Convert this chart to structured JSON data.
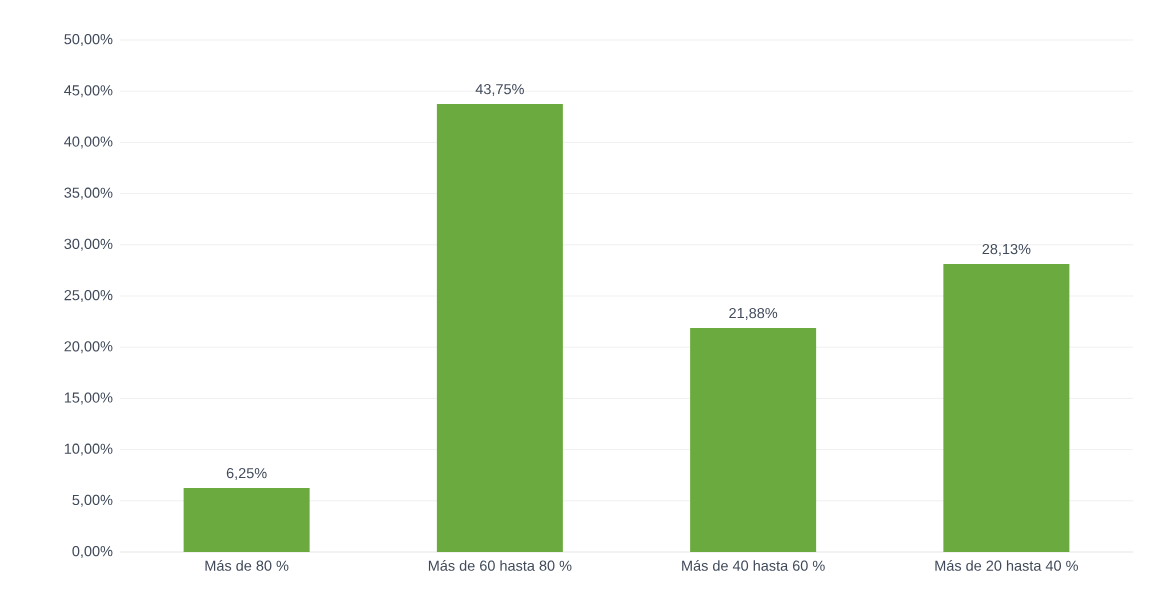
{
  "chart_data": {
    "type": "bar",
    "categories": [
      "Más de 80 %",
      "Más de 60 hasta 80 %",
      "Más de 40 hasta 60 %",
      "Más de 20 hasta 40 %"
    ],
    "values": [
      6.25,
      43.75,
      21.88,
      28.13
    ],
    "value_labels": [
      "6,25%",
      "43,75%",
      "21,88%",
      "28,13%"
    ],
    "color": "#6aaa3e",
    "ylim": [
      0,
      50
    ],
    "yticks": [
      {
        "value": 0,
        "label": "0,00%"
      },
      {
        "value": 5,
        "label": "5,00%"
      },
      {
        "value": 10,
        "label": "10,00%"
      },
      {
        "value": 15,
        "label": "15,00%"
      },
      {
        "value": 20,
        "label": "20,00%"
      },
      {
        "value": 25,
        "label": "25,00%"
      },
      {
        "value": 30,
        "label": "30,00%"
      },
      {
        "value": 35,
        "label": "35,00%"
      },
      {
        "value": 40,
        "label": "40,00%"
      },
      {
        "value": 45,
        "label": "45,00%"
      },
      {
        "value": 50,
        "label": "50,00%"
      }
    ],
    "grid": "y"
  }
}
